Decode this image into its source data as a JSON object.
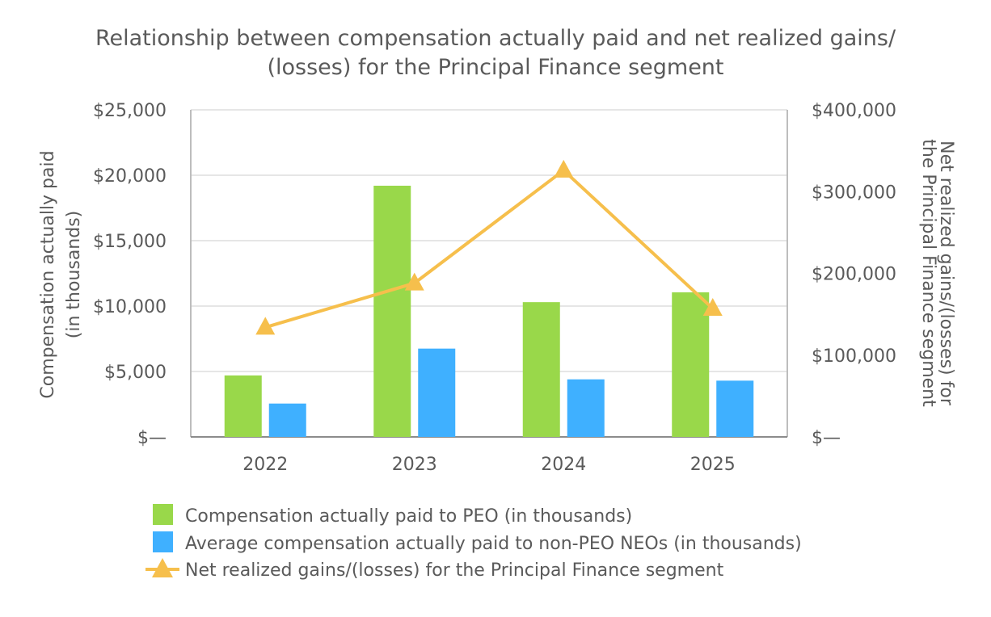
{
  "chart_data": {
    "type": "bar",
    "title": "Relationship between compensation actually paid and net realized gains/ (losses) for the Principal Finance segment",
    "title_lines": [
      "Relationship between compensation actually paid and net realized gains/",
      "(losses) for the Principal Finance segment"
    ],
    "categories": [
      "2022",
      "2023",
      "2024",
      "2025"
    ],
    "y_left": {
      "label_lines": [
        "Compensation actually paid",
        "(in thousands)"
      ],
      "ylim": [
        0,
        25000
      ],
      "ticks": [
        0,
        5000,
        10000,
        15000,
        20000,
        25000
      ],
      "tick_labels": [
        "$—",
        "$5,000",
        "$10,000",
        "$15,000",
        "$20,000",
        "$25,000"
      ]
    },
    "y_right": {
      "label_lines": [
        "Net realized gains/(losses) for",
        "the Principal Finance segment"
      ],
      "ylim": [
        0,
        400000
      ],
      "ticks": [
        0,
        100000,
        200000,
        300000,
        400000
      ],
      "tick_labels": [
        "$—",
        "$100,000",
        "$200,000",
        "$300,000",
        "$400,000"
      ]
    },
    "series": [
      {
        "name": "Compensation actually paid to PEO (in thousands)",
        "kind": "bar",
        "axis": "left",
        "color": "#99d84a",
        "values": [
          4700,
          19200,
          10300,
          11050
        ]
      },
      {
        "name": "Average compensation actually paid to non-PEO NEOs (in thousands)",
        "kind": "bar",
        "axis": "left",
        "color": "#3fb0ff",
        "values": [
          2550,
          6750,
          4400,
          4300
        ]
      },
      {
        "name": "Net realized gains/(losses) for the Principal Finance segment",
        "kind": "line",
        "axis": "right",
        "color": "#f6bf4c",
        "marker": "triangle",
        "values": [
          134000,
          188000,
          326000,
          157000
        ]
      }
    ],
    "grid": true,
    "legend_position": "bottom"
  }
}
